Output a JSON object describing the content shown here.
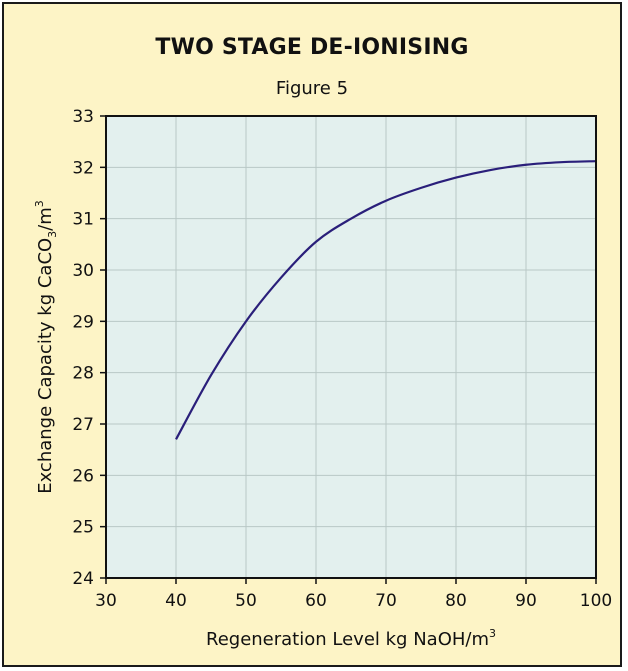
{
  "chart_data": {
    "type": "line",
    "title": "TWO STAGE DE-IONISING",
    "subtitle": "Figure 5",
    "xlabel": {
      "text": "Regeneration Level kg NaOH/m",
      "superscript": "3"
    },
    "ylabel": {
      "pre": "Exchange Capacity kg CaCO",
      "subscript": "3",
      "mid": "/m",
      "superscript": "3"
    },
    "xlim": [
      30,
      100
    ],
    "ylim": [
      24,
      33
    ],
    "xticks": [
      "30",
      "40",
      "50",
      "60",
      "70",
      "80",
      "90",
      "100"
    ],
    "yticks": [
      "24",
      "25",
      "26",
      "27",
      "28",
      "29",
      "30",
      "31",
      "32",
      "33"
    ],
    "grid": true,
    "series": [
      {
        "x": [
          40,
          45,
          50,
          55,
          60,
          65,
          70,
          75,
          80,
          85,
          90,
          95,
          100
        ],
        "y": [
          26.7,
          27.95,
          29.0,
          29.85,
          30.55,
          31.0,
          31.35,
          31.6,
          31.8,
          31.95,
          32.05,
          32.1,
          32.12
        ]
      }
    ],
    "colors": {
      "background": "#fdf4c6",
      "plot_area": "#e3f0ee",
      "grid": "#b9c8c6",
      "line": "#2a1f7a",
      "axis": "#111111"
    }
  }
}
